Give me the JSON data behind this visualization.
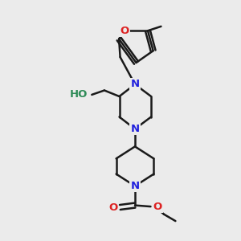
{
  "bg_color": "#ebebeb",
  "atom_colors": {
    "N": "#2222dd",
    "O": "#dd2222",
    "HO": "#2e8b57"
  },
  "bond_color": "#1a1a1a",
  "bond_width": 1.8,
  "font_size": 9.5,
  "fig_size": [
    3.0,
    3.0
  ],
  "dpi": 100
}
